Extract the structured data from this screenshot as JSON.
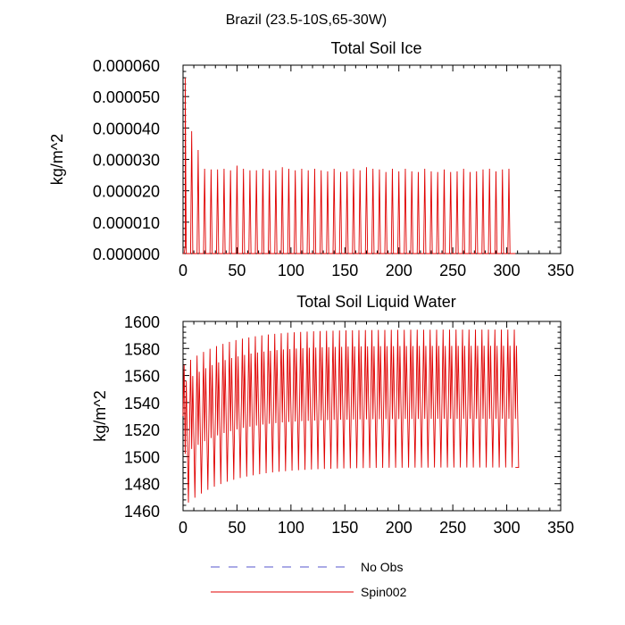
{
  "figure_title": "Brazil (23.5-10S,65-30W)",
  "legend": [
    {
      "label": "No Obs",
      "color": "#5555cc",
      "dash": true
    },
    {
      "label": "Spin002",
      "color": "#e00000",
      "dash": false
    }
  ],
  "chart_data": [
    {
      "type": "line",
      "title": "Total Soil Ice",
      "xlabel": "",
      "ylabel": "kg/m^2",
      "xlim": [
        0,
        350
      ],
      "ylim": [
        0,
        6e-05
      ],
      "xticks": [
        0,
        50,
        100,
        150,
        200,
        250,
        300,
        350
      ],
      "xtick_labels": [
        "0",
        "50",
        "100",
        "150",
        "200",
        "250",
        "300",
        "350"
      ],
      "yticks": [
        0,
        1e-05,
        2e-05,
        3e-05,
        4e-05,
        5e-05,
        6e-05
      ],
      "ytick_labels": [
        "0.000000",
        "0.000010",
        "0.000020",
        "0.000030",
        "0.000040",
        "0.000050",
        "0.000060"
      ],
      "series": [
        {
          "name": "Spin002",
          "color": "#e00000",
          "cycle_period": 6,
          "x_end": 308,
          "peaks": [
            5.6e-05,
            3.9e-05,
            3.3e-05,
            2.7e-05,
            2.68e-05,
            2.68e-05,
            2.7e-05,
            2.65e-05,
            2.8e-05,
            2.7e-05,
            2.65e-05,
            2.65e-05,
            2.7e-05,
            2.65e-05,
            2.65e-05,
            2.75e-05,
            2.7e-05,
            2.65e-05,
            2.7e-05,
            2.65e-05,
            2.7e-05,
            2.65e-05,
            2.62e-05,
            2.7e-05,
            2.6e-05,
            2.62e-05,
            2.7e-05,
            2.65e-05,
            2.75e-05,
            2.7e-05,
            2.68e-05,
            2.6e-05,
            2.7e-05,
            2.62e-05,
            2.7e-05,
            2.62e-05,
            2.6e-05,
            2.7e-05,
            2.62e-05,
            2.6e-05,
            2.68e-05,
            2.6e-05,
            2.62e-05,
            2.7e-05,
            2.6e-05,
            2.62e-05,
            2.68e-05,
            2.7e-05,
            2.62e-05,
            2.68e-05,
            2.7e-05
          ]
        }
      ]
    },
    {
      "type": "line",
      "title": "Total Soil Liquid Water",
      "xlabel": "",
      "ylabel": "kg/m^2",
      "xlim": [
        0,
        350
      ],
      "ylim": [
        1460,
        1600
      ],
      "xticks": [
        0,
        50,
        100,
        150,
        200,
        250,
        300,
        350
      ],
      "xtick_labels": [
        "0",
        "50",
        "100",
        "150",
        "200",
        "250",
        "300",
        "350"
      ],
      "yticks": [
        1460,
        1480,
        1500,
        1520,
        1540,
        1560,
        1580,
        1600
      ],
      "ytick_labels": [
        "1460",
        "1480",
        "1500",
        "1520",
        "1540",
        "1560",
        "1580",
        "1600"
      ],
      "series": [
        {
          "name": "Spin002",
          "color": "#e00000",
          "cycle_period": 6,
          "x_end": 308,
          "max_start": 1568,
          "max_end": 1594,
          "min_start": 1466,
          "min_end": 1492,
          "inner_offset": 12
        }
      ]
    }
  ]
}
